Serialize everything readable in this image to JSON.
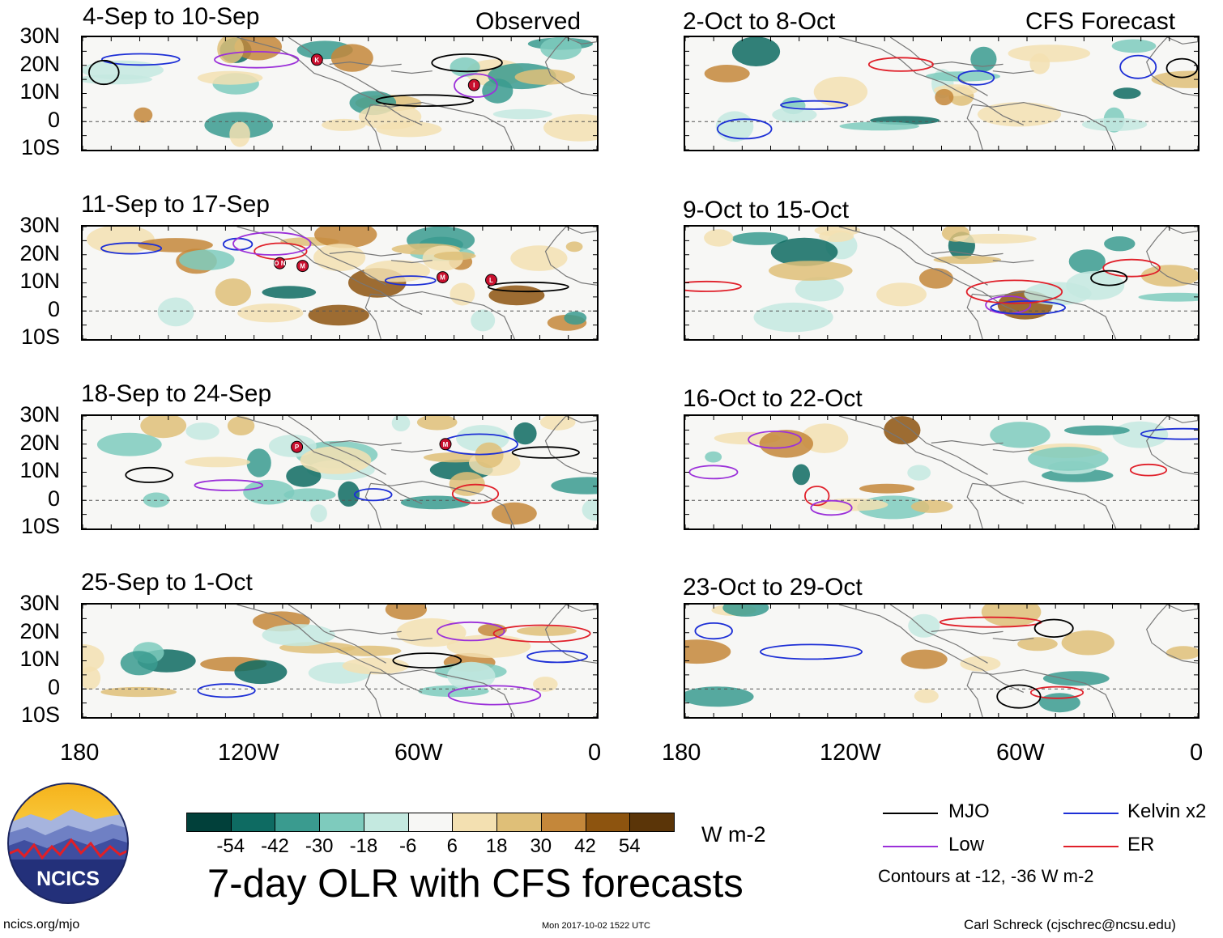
{
  "chart_data": {
    "type": "heatmap",
    "title": "7-day OLR with CFS forecasts",
    "units": "W m-2",
    "column_headers": [
      "Observed",
      "CFS Forecast"
    ],
    "lat_ticks": [
      "30N",
      "20N",
      "10N",
      "0",
      "10S"
    ],
    "lon_ticks": [
      "180",
      "120W",
      "60W",
      "0"
    ],
    "lat_range": [
      -10,
      30
    ],
    "lon_range": [
      -180,
      0
    ],
    "observed_panels": [
      {
        "title": "4-Sep to 10-Sep",
        "storms": [
          {
            "id": "K",
            "lon": -98,
            "lat": 22
          },
          {
            "id": "I",
            "lon": -43,
            "lat": 13
          }
        ]
      },
      {
        "title": "11-Sep to 17-Sep",
        "storms": [
          {
            "id": "O N",
            "lon": -111,
            "lat": 17
          },
          {
            "id": "M",
            "lon": -103,
            "lat": 16
          },
          {
            "id": "M",
            "lon": -54,
            "lat": 12
          },
          {
            "id": "L",
            "lon": -37,
            "lat": 11
          }
        ]
      },
      {
        "title": "18-Sep to 24-Sep",
        "storms": [
          {
            "id": "P",
            "lon": -105,
            "lat": 19
          },
          {
            "id": "M",
            "lon": -53,
            "lat": 20
          }
        ]
      },
      {
        "title": "25-Sep to 1-Oct",
        "storms": []
      }
    ],
    "forecast_panels": [
      {
        "title": "2-Oct to 8-Oct"
      },
      {
        "title": "9-Oct to 15-Oct"
      },
      {
        "title": "16-Oct to 22-Oct"
      },
      {
        "title": "23-Oct to 29-Oct"
      }
    ],
    "colorbar": {
      "labels": [
        "-54",
        "-42",
        "-30",
        "-18",
        "-6",
        "6",
        "18",
        "30",
        "42",
        "54"
      ],
      "colors": [
        "#01403a",
        "#0e6b62",
        "#3a9b8f",
        "#7ecbbd",
        "#c4e9e0",
        "#f7f7f5",
        "#f3e0b1",
        "#dfbf78",
        "#c4873a",
        "#8d540f",
        "#5b3508"
      ]
    },
    "legend": {
      "items": [
        {
          "label": "MJO",
          "color": "#000000"
        },
        {
          "label": "Kelvin x2",
          "color": "#1d2fd6"
        },
        {
          "label": "Low",
          "color": "#9b30d9"
        },
        {
          "label": "ER",
          "color": "#e0202a"
        }
      ],
      "note": "Contours at -12, -36 W m-2"
    }
  },
  "footer": {
    "logo_text": "NCICS",
    "url": "ncics.org/mjo",
    "timestamp": "Mon 2017-10-02 1522 UTC",
    "credit": "Carl Schreck (cjschrec@ncsu.edu)"
  }
}
